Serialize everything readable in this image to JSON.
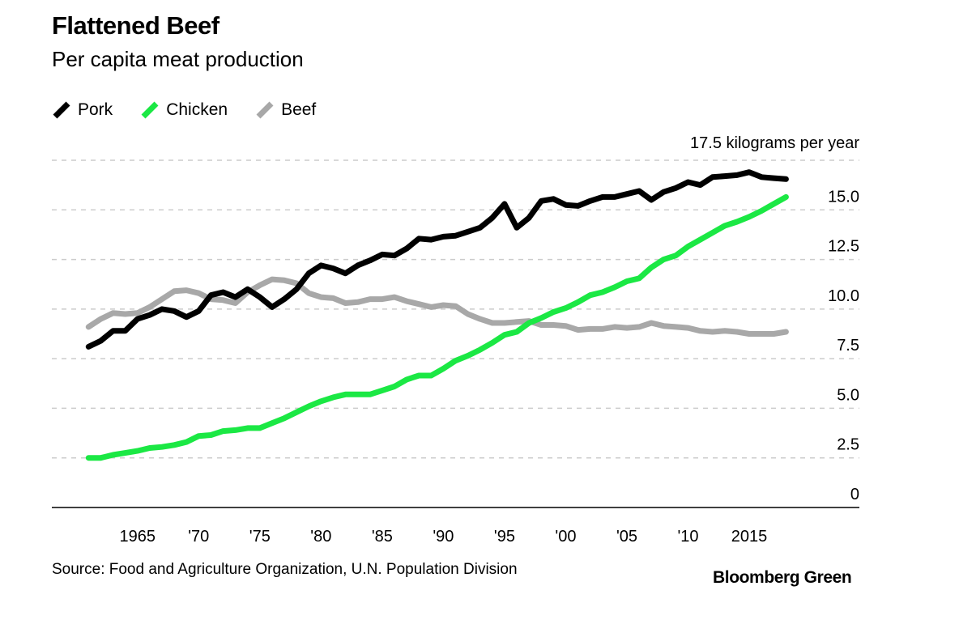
{
  "header": {
    "title": "Flattened Beef",
    "subtitle": "Per capita meat production"
  },
  "footer": {
    "source": "Source: Food and Agriculture Organization, U.N. Population Division",
    "brand": "Bloomberg Green"
  },
  "colors": {
    "pork": "#000000",
    "chicken": "#1be844",
    "beef": "#a8a8a8",
    "grid": "#cccccc",
    "axis": "#000000"
  },
  "chart_data": {
    "type": "line",
    "title": "Flattened Beef",
    "subtitle": "Per capita meat production",
    "unit_label": "17.5 kilograms per year",
    "ylim": [
      0,
      17.5
    ],
    "xlim": [
      1958,
      2024
    ],
    "y_ticks": [
      {
        "value": 0,
        "label": "0"
      },
      {
        "value": 2.5,
        "label": "2.5"
      },
      {
        "value": 5,
        "label": "5.0"
      },
      {
        "value": 7.5,
        "label": "7.5"
      },
      {
        "value": 10,
        "label": "10.0"
      },
      {
        "value": 12.5,
        "label": "12.5"
      },
      {
        "value": 15,
        "label": "15.0"
      }
    ],
    "x_ticks": [
      {
        "value": 1965,
        "label": "1965"
      },
      {
        "value": 1970,
        "label": "'70"
      },
      {
        "value": 1975,
        "label": "'75"
      },
      {
        "value": 1980,
        "label": "'80"
      },
      {
        "value": 1985,
        "label": "'85"
      },
      {
        "value": 1990,
        "label": "'90"
      },
      {
        "value": 1995,
        "label": "'95"
      },
      {
        "value": 2000,
        "label": "'00"
      },
      {
        "value": 2005,
        "label": "'05"
      },
      {
        "value": 2010,
        "label": "'10"
      },
      {
        "value": 2015,
        "label": "2015"
      }
    ],
    "grid": true,
    "legend_position": "top-left",
    "x": [
      1961,
      1962,
      1963,
      1964,
      1965,
      1966,
      1967,
      1968,
      1969,
      1970,
      1971,
      1972,
      1973,
      1974,
      1975,
      1976,
      1977,
      1978,
      1979,
      1980,
      1981,
      1982,
      1983,
      1984,
      1985,
      1986,
      1987,
      1988,
      1989,
      1990,
      1991,
      1992,
      1993,
      1994,
      1995,
      1996,
      1997,
      1998,
      1999,
      2000,
      2001,
      2002,
      2003,
      2004,
      2005,
      2006,
      2007,
      2008,
      2009,
      2010,
      2011,
      2012,
      2013,
      2014,
      2015,
      2016,
      2017,
      2018
    ],
    "series": [
      {
        "name": "Pork",
        "values": [
          8.1,
          8.4,
          8.9,
          8.9,
          9.5,
          9.7,
          10.0,
          9.9,
          9.6,
          9.9,
          10.7,
          10.85,
          10.6,
          11.0,
          10.6,
          10.1,
          10.5,
          11.0,
          11.8,
          12.2,
          12.05,
          11.8,
          12.2,
          12.45,
          12.75,
          12.7,
          13.05,
          13.55,
          13.5,
          13.65,
          13.7,
          13.9,
          14.1,
          14.6,
          15.3,
          14.1,
          14.6,
          15.45,
          15.55,
          15.25,
          15.2,
          15.45,
          15.65,
          15.65,
          15.8,
          15.95,
          15.5,
          15.9,
          16.1,
          16.4,
          16.25,
          16.65,
          16.7,
          16.75,
          16.9,
          16.65,
          16.6,
          16.55
        ]
      },
      {
        "name": "Chicken",
        "values": [
          2.5,
          2.5,
          2.65,
          2.75,
          2.85,
          3.0,
          3.05,
          3.15,
          3.3,
          3.6,
          3.65,
          3.85,
          3.9,
          4.0,
          4.0,
          4.25,
          4.5,
          4.8,
          5.1,
          5.35,
          5.55,
          5.7,
          5.7,
          5.7,
          5.9,
          6.1,
          6.45,
          6.65,
          6.65,
          7.0,
          7.4,
          7.65,
          7.95,
          8.3,
          8.7,
          8.85,
          9.3,
          9.55,
          9.85,
          10.05,
          10.35,
          10.7,
          10.85,
          11.1,
          11.4,
          11.55,
          12.1,
          12.5,
          12.7,
          13.15,
          13.5,
          13.85,
          14.2,
          14.4,
          14.65,
          14.95,
          15.3,
          15.65
        ]
      },
      {
        "name": "Beef",
        "values": [
          9.1,
          9.5,
          9.8,
          9.75,
          9.8,
          10.1,
          10.5,
          10.9,
          10.95,
          10.8,
          10.5,
          10.45,
          10.3,
          10.85,
          11.2,
          11.5,
          11.45,
          11.3,
          10.8,
          10.6,
          10.55,
          10.3,
          10.35,
          10.5,
          10.5,
          10.6,
          10.4,
          10.25,
          10.1,
          10.2,
          10.15,
          9.75,
          9.5,
          9.3,
          9.3,
          9.35,
          9.4,
          9.2,
          9.2,
          9.15,
          8.95,
          9.0,
          9.0,
          9.1,
          9.05,
          9.1,
          9.3,
          9.15,
          9.1,
          9.05,
          8.9,
          8.85,
          8.9,
          8.85,
          8.75,
          8.75,
          8.75,
          8.85
        ]
      }
    ]
  }
}
